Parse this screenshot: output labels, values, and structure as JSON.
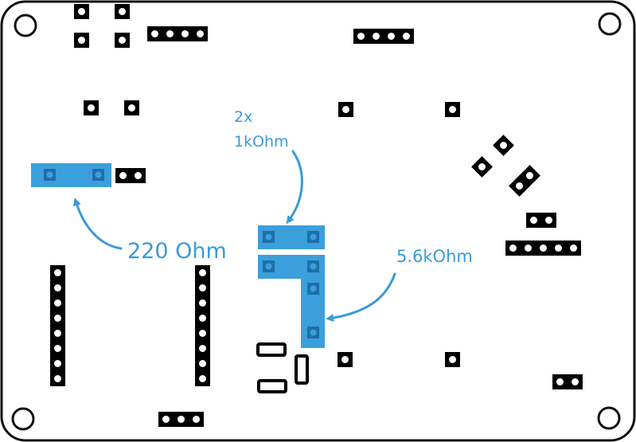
{
  "colors": {
    "outline": "#111111",
    "pad": "#000000",
    "pad_hole": "#ffffff",
    "highlight": "#3b9fdc",
    "highlight_pad": "#1f6ea8",
    "label": "#3a9ad9"
  },
  "annotations": {
    "resistor_220": "220 Ohm",
    "resistor_1k_count": "2x",
    "resistor_1k_value": "1kOhm",
    "resistor_5k6": "5.6kOhm"
  }
}
